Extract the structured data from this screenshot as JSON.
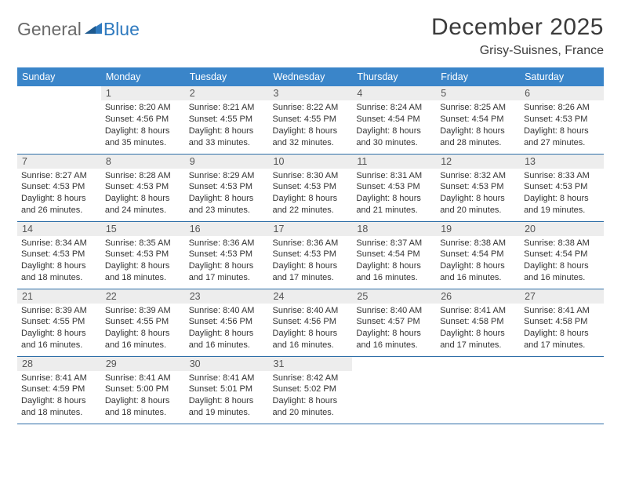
{
  "logo": {
    "part1": "General",
    "part2": "Blue"
  },
  "title": "December 2025",
  "location": "Grisy-Suisnes, France",
  "colors": {
    "header_bg": "#3a85c9",
    "header_text": "#ffffff",
    "daynum_bg": "#ededed",
    "row_border": "#2f6fa8",
    "logo_gray": "#6a6a6a",
    "logo_blue": "#2f7abf"
  },
  "weekdays": [
    "Sunday",
    "Monday",
    "Tuesday",
    "Wednesday",
    "Thursday",
    "Friday",
    "Saturday"
  ],
  "weeks": [
    [
      null,
      {
        "n": "1",
        "sr": "Sunrise: 8:20 AM",
        "ss": "Sunset: 4:56 PM",
        "d1": "Daylight: 8 hours",
        "d2": "and 35 minutes."
      },
      {
        "n": "2",
        "sr": "Sunrise: 8:21 AM",
        "ss": "Sunset: 4:55 PM",
        "d1": "Daylight: 8 hours",
        "d2": "and 33 minutes."
      },
      {
        "n": "3",
        "sr": "Sunrise: 8:22 AM",
        "ss": "Sunset: 4:55 PM",
        "d1": "Daylight: 8 hours",
        "d2": "and 32 minutes."
      },
      {
        "n": "4",
        "sr": "Sunrise: 8:24 AM",
        "ss": "Sunset: 4:54 PM",
        "d1": "Daylight: 8 hours",
        "d2": "and 30 minutes."
      },
      {
        "n": "5",
        "sr": "Sunrise: 8:25 AM",
        "ss": "Sunset: 4:54 PM",
        "d1": "Daylight: 8 hours",
        "d2": "and 28 minutes."
      },
      {
        "n": "6",
        "sr": "Sunrise: 8:26 AM",
        "ss": "Sunset: 4:53 PM",
        "d1": "Daylight: 8 hours",
        "d2": "and 27 minutes."
      }
    ],
    [
      {
        "n": "7",
        "sr": "Sunrise: 8:27 AM",
        "ss": "Sunset: 4:53 PM",
        "d1": "Daylight: 8 hours",
        "d2": "and 26 minutes."
      },
      {
        "n": "8",
        "sr": "Sunrise: 8:28 AM",
        "ss": "Sunset: 4:53 PM",
        "d1": "Daylight: 8 hours",
        "d2": "and 24 minutes."
      },
      {
        "n": "9",
        "sr": "Sunrise: 8:29 AM",
        "ss": "Sunset: 4:53 PM",
        "d1": "Daylight: 8 hours",
        "d2": "and 23 minutes."
      },
      {
        "n": "10",
        "sr": "Sunrise: 8:30 AM",
        "ss": "Sunset: 4:53 PM",
        "d1": "Daylight: 8 hours",
        "d2": "and 22 minutes."
      },
      {
        "n": "11",
        "sr": "Sunrise: 8:31 AM",
        "ss": "Sunset: 4:53 PM",
        "d1": "Daylight: 8 hours",
        "d2": "and 21 minutes."
      },
      {
        "n": "12",
        "sr": "Sunrise: 8:32 AM",
        "ss": "Sunset: 4:53 PM",
        "d1": "Daylight: 8 hours",
        "d2": "and 20 minutes."
      },
      {
        "n": "13",
        "sr": "Sunrise: 8:33 AM",
        "ss": "Sunset: 4:53 PM",
        "d1": "Daylight: 8 hours",
        "d2": "and 19 minutes."
      }
    ],
    [
      {
        "n": "14",
        "sr": "Sunrise: 8:34 AM",
        "ss": "Sunset: 4:53 PM",
        "d1": "Daylight: 8 hours",
        "d2": "and 18 minutes."
      },
      {
        "n": "15",
        "sr": "Sunrise: 8:35 AM",
        "ss": "Sunset: 4:53 PM",
        "d1": "Daylight: 8 hours",
        "d2": "and 18 minutes."
      },
      {
        "n": "16",
        "sr": "Sunrise: 8:36 AM",
        "ss": "Sunset: 4:53 PM",
        "d1": "Daylight: 8 hours",
        "d2": "and 17 minutes."
      },
      {
        "n": "17",
        "sr": "Sunrise: 8:36 AM",
        "ss": "Sunset: 4:53 PM",
        "d1": "Daylight: 8 hours",
        "d2": "and 17 minutes."
      },
      {
        "n": "18",
        "sr": "Sunrise: 8:37 AM",
        "ss": "Sunset: 4:54 PM",
        "d1": "Daylight: 8 hours",
        "d2": "and 16 minutes."
      },
      {
        "n": "19",
        "sr": "Sunrise: 8:38 AM",
        "ss": "Sunset: 4:54 PM",
        "d1": "Daylight: 8 hours",
        "d2": "and 16 minutes."
      },
      {
        "n": "20",
        "sr": "Sunrise: 8:38 AM",
        "ss": "Sunset: 4:54 PM",
        "d1": "Daylight: 8 hours",
        "d2": "and 16 minutes."
      }
    ],
    [
      {
        "n": "21",
        "sr": "Sunrise: 8:39 AM",
        "ss": "Sunset: 4:55 PM",
        "d1": "Daylight: 8 hours",
        "d2": "and 16 minutes."
      },
      {
        "n": "22",
        "sr": "Sunrise: 8:39 AM",
        "ss": "Sunset: 4:55 PM",
        "d1": "Daylight: 8 hours",
        "d2": "and 16 minutes."
      },
      {
        "n": "23",
        "sr": "Sunrise: 8:40 AM",
        "ss": "Sunset: 4:56 PM",
        "d1": "Daylight: 8 hours",
        "d2": "and 16 minutes."
      },
      {
        "n": "24",
        "sr": "Sunrise: 8:40 AM",
        "ss": "Sunset: 4:56 PM",
        "d1": "Daylight: 8 hours",
        "d2": "and 16 minutes."
      },
      {
        "n": "25",
        "sr": "Sunrise: 8:40 AM",
        "ss": "Sunset: 4:57 PM",
        "d1": "Daylight: 8 hours",
        "d2": "and 16 minutes."
      },
      {
        "n": "26",
        "sr": "Sunrise: 8:41 AM",
        "ss": "Sunset: 4:58 PM",
        "d1": "Daylight: 8 hours",
        "d2": "and 17 minutes."
      },
      {
        "n": "27",
        "sr": "Sunrise: 8:41 AM",
        "ss": "Sunset: 4:58 PM",
        "d1": "Daylight: 8 hours",
        "d2": "and 17 minutes."
      }
    ],
    [
      {
        "n": "28",
        "sr": "Sunrise: 8:41 AM",
        "ss": "Sunset: 4:59 PM",
        "d1": "Daylight: 8 hours",
        "d2": "and 18 minutes."
      },
      {
        "n": "29",
        "sr": "Sunrise: 8:41 AM",
        "ss": "Sunset: 5:00 PM",
        "d1": "Daylight: 8 hours",
        "d2": "and 18 minutes."
      },
      {
        "n": "30",
        "sr": "Sunrise: 8:41 AM",
        "ss": "Sunset: 5:01 PM",
        "d1": "Daylight: 8 hours",
        "d2": "and 19 minutes."
      },
      {
        "n": "31",
        "sr": "Sunrise: 8:42 AM",
        "ss": "Sunset: 5:02 PM",
        "d1": "Daylight: 8 hours",
        "d2": "and 20 minutes."
      },
      null,
      null,
      null
    ]
  ]
}
